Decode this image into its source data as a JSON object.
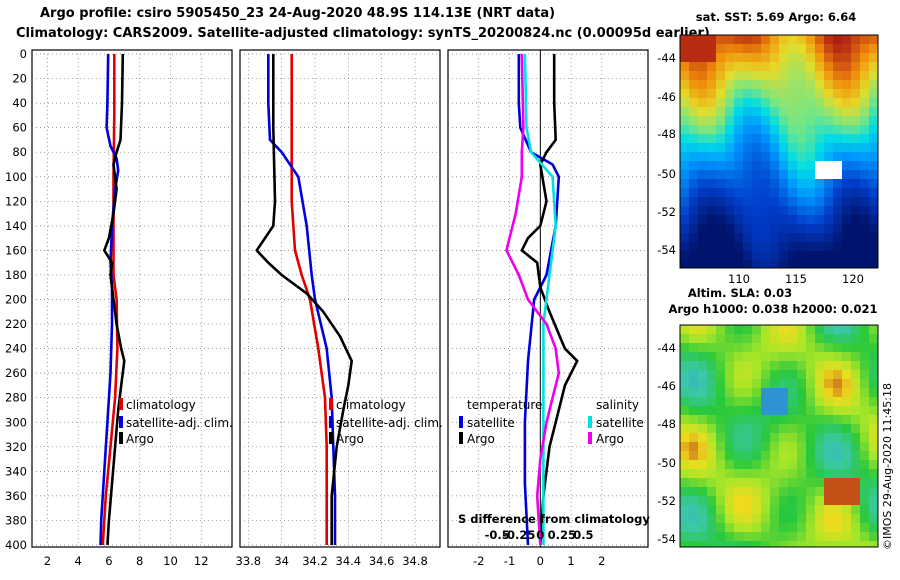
{
  "title": {
    "line1": "Argo profile: csiro 5905450_23 24-Aug-2020 48.9S 114.13E (NRT data)",
    "line2": "Climatology: CARS2009. Satellite-adjusted climatology: synTS_20200824.nc (0.00095d earlier)"
  },
  "depth_axis": {
    "ticks": [
      0,
      20,
      40,
      60,
      80,
      100,
      120,
      140,
      160,
      180,
      200,
      220,
      240,
      260,
      280,
      300,
      320,
      340,
      360,
      380,
      400
    ]
  },
  "colors": {
    "argo": "#000000",
    "climatology": "#e00000",
    "satellite": "#0000dd",
    "satellite_salinity": "#00e0e0",
    "argo_salinity": "#ee00ee"
  },
  "chart_data": [
    {
      "id": "temperature",
      "type": "line",
      "xlim": [
        1,
        14
      ],
      "ylim": [
        400,
        0
      ],
      "xticks": [
        "2",
        "4",
        "6",
        "8",
        "10",
        "12"
      ],
      "xtick_values": [
        2,
        4,
        6,
        8,
        10,
        12
      ],
      "legend": [
        "climatology",
        "satellite-adj. clim.",
        "Argo"
      ],
      "series": [
        {
          "name": "climatology",
          "color": "#e00000",
          "points": [
            [
              6.35,
              0
            ],
            [
              6.35,
              50
            ],
            [
              6.3,
              100
            ],
            [
              6.3,
              140
            ],
            [
              6.3,
              180
            ],
            [
              6.5,
              200
            ],
            [
              6.55,
              240
            ],
            [
              6.4,
              280
            ],
            [
              6.1,
              320
            ],
            [
              5.8,
              360
            ],
            [
              5.6,
              400
            ]
          ]
        },
        {
          "name": "satellite-adj. clim.",
          "color": "#0000dd",
          "points": [
            [
              5.95,
              0
            ],
            [
              5.9,
              40
            ],
            [
              5.85,
              60
            ],
            [
              6.1,
              75
            ],
            [
              6.5,
              85
            ],
            [
              6.6,
              95
            ],
            [
              6.4,
              110
            ],
            [
              6.2,
              140
            ],
            [
              6.1,
              170
            ],
            [
              6.2,
              190
            ],
            [
              6.2,
              220
            ],
            [
              6.1,
              260
            ],
            [
              5.9,
              300
            ],
            [
              5.7,
              340
            ],
            [
              5.5,
              380
            ],
            [
              5.45,
              400
            ]
          ]
        },
        {
          "name": "Argo",
          "color": "#000000",
          "points": [
            [
              6.9,
              0
            ],
            [
              6.85,
              40
            ],
            [
              6.75,
              70
            ],
            [
              6.5,
              80
            ],
            [
              6.3,
              90
            ],
            [
              6.5,
              110
            ],
            [
              6.3,
              130
            ],
            [
              6.0,
              150
            ],
            [
              5.7,
              160
            ],
            [
              6.2,
              170
            ],
            [
              6.1,
              180
            ],
            [
              6.3,
              200
            ],
            [
              6.5,
              220
            ],
            [
              6.8,
              240
            ],
            [
              7.0,
              250
            ],
            [
              6.8,
              270
            ],
            [
              6.6,
              290
            ],
            [
              6.4,
              320
            ],
            [
              6.2,
              350
            ],
            [
              6.0,
              380
            ],
            [
              5.9,
              400
            ]
          ]
        }
      ]
    },
    {
      "id": "salinity",
      "type": "line",
      "xlim": [
        33.75,
        34.95
      ],
      "ylim": [
        400,
        0
      ],
      "xticks": [
        "33.8",
        "34",
        "34.2",
        "34.4",
        "34.6",
        "34.8"
      ],
      "xtick_values": [
        33.8,
        34.0,
        34.2,
        34.4,
        34.6,
        34.8
      ],
      "legend": [
        "climatology",
        "satellite-adj. clim.",
        "Argo"
      ],
      "series": [
        {
          "name": "climatology",
          "color": "#e00000",
          "points": [
            [
              34.06,
              0
            ],
            [
              34.06,
              60
            ],
            [
              34.06,
              120
            ],
            [
              34.08,
              160
            ],
            [
              34.12,
              180
            ],
            [
              34.17,
              200
            ],
            [
              34.22,
              240
            ],
            [
              34.26,
              280
            ],
            [
              34.27,
              320
            ],
            [
              34.27,
              360
            ],
            [
              34.27,
              400
            ]
          ]
        },
        {
          "name": "satellite-adj. clim.",
          "color": "#0000dd",
          "points": [
            [
              33.92,
              0
            ],
            [
              33.92,
              40
            ],
            [
              33.93,
              70
            ],
            [
              34.0,
              80
            ],
            [
              34.1,
              100
            ],
            [
              34.15,
              140
            ],
            [
              34.18,
              180
            ],
            [
              34.2,
              200
            ],
            [
              34.27,
              240
            ],
            [
              34.3,
              280
            ],
            [
              34.31,
              320
            ],
            [
              34.32,
              360
            ],
            [
              34.32,
              400
            ]
          ]
        },
        {
          "name": "Argo",
          "color": "#000000",
          "points": [
            [
              33.95,
              0
            ],
            [
              33.95,
              60
            ],
            [
              33.96,
              120
            ],
            [
              33.95,
              140
            ],
            [
              33.9,
              150
            ],
            [
              33.85,
              160
            ],
            [
              33.92,
              170
            ],
            [
              34.0,
              180
            ],
            [
              34.15,
              195
            ],
            [
              34.25,
              210
            ],
            [
              34.35,
              230
            ],
            [
              34.42,
              250
            ],
            [
              34.4,
              270
            ],
            [
              34.37,
              290
            ],
            [
              34.33,
              320
            ],
            [
              34.3,
              360
            ],
            [
              34.3,
              400
            ]
          ]
        }
      ]
    },
    {
      "id": "difference",
      "type": "line",
      "xlim": [
        -3,
        3.5
      ],
      "ylim": [
        400,
        0
      ],
      "xticks": [
        "-2",
        "-1",
        "0",
        "1",
        "2"
      ],
      "xtick_values": [
        -2,
        -1,
        0,
        1,
        2
      ],
      "secondary_xticks": [
        "-0.5",
        "-0.25",
        "0",
        "0.25",
        "0.5"
      ],
      "secondary_xtick_values": [
        -0.5,
        -0.25,
        0,
        0.25,
        0.5
      ],
      "secondary_xlabel": "S difference from climatology",
      "legend_temperature": {
        "heading": "temperature",
        "items": [
          "satellite",
          "Argo"
        ]
      },
      "legend_salinity": {
        "heading": "salinity",
        "items": [
          "satellite",
          "Argo"
        ]
      },
      "series": [
        {
          "name": "temperature satellite",
          "color": "#0000dd",
          "points": [
            [
              -0.7,
              0
            ],
            [
              -0.7,
              40
            ],
            [
              -0.65,
              60
            ],
            [
              -0.3,
              80
            ],
            [
              0.4,
              90
            ],
            [
              0.6,
              100
            ],
            [
              0.5,
              140
            ],
            [
              0.2,
              180
            ],
            [
              -0.2,
              200
            ],
            [
              -0.4,
              250
            ],
            [
              -0.5,
              300
            ],
            [
              -0.5,
              350
            ],
            [
              -0.4,
              400
            ]
          ]
        },
        {
          "name": "temperature Argo",
          "color": "#000000",
          "points": [
            [
              0.45,
              0
            ],
            [
              0.45,
              40
            ],
            [
              0.5,
              70
            ],
            [
              0.2,
              80
            ],
            [
              0.0,
              90
            ],
            [
              0.2,
              120
            ],
            [
              0.0,
              140
            ],
            [
              -0.4,
              150
            ],
            [
              -0.6,
              160
            ],
            [
              -0.1,
              170
            ],
            [
              0.0,
              190
            ],
            [
              0.3,
              210
            ],
            [
              0.8,
              240
            ],
            [
              1.2,
              250
            ],
            [
              0.8,
              270
            ],
            [
              0.5,
              300
            ],
            [
              0.3,
              320
            ],
            [
              0.1,
              360
            ],
            [
              0.0,
              400
            ]
          ]
        },
        {
          "name": "salinity satellite",
          "color": "#00e0e0",
          "points": [
            [
              -0.5,
              0
            ],
            [
              -0.45,
              60
            ],
            [
              -0.3,
              80
            ],
            [
              0.4,
              100
            ],
            [
              0.5,
              140
            ],
            [
              0.3,
              180
            ],
            [
              0.1,
              220
            ],
            [
              0.1,
              280
            ],
            [
              0.1,
              320
            ],
            [
              0.1,
              400
            ]
          ]
        },
        {
          "name": "salinity Argo",
          "color": "#ee00ee",
          "points": [
            [
              -0.6,
              0
            ],
            [
              -0.55,
              60
            ],
            [
              -0.6,
              80
            ],
            [
              -0.6,
              100
            ],
            [
              -0.8,
              130
            ],
            [
              -1.0,
              150
            ],
            [
              -1.1,
              160
            ],
            [
              -0.7,
              180
            ],
            [
              -0.4,
              200
            ],
            [
              0.2,
              220
            ],
            [
              0.5,
              240
            ],
            [
              0.6,
              260
            ],
            [
              0.4,
              280
            ],
            [
              0.2,
              300
            ],
            [
              0.0,
              330
            ],
            [
              -0.1,
              360
            ],
            [
              0.0,
              400
            ]
          ]
        }
      ]
    },
    {
      "id": "sst_map",
      "type": "heatmap",
      "title": "sat. SST: 5.69 Argo: 6.64",
      "xticks": [
        "110",
        "115",
        "120"
      ],
      "yticks": [
        "-44",
        "-46",
        "-48",
        "-50",
        "-52",
        "-54"
      ]
    },
    {
      "id": "sla_map",
      "type": "heatmap",
      "title_line1": "Altim. SLA: 0.03",
      "title_line2": "Argo h1000: 0.038 h2000: 0.021",
      "yticks": [
        "-44",
        "-46",
        "-48",
        "-50",
        "-52",
        "-54"
      ]
    }
  ],
  "credit": "©IMOS 29-Aug-2020 11:45:18"
}
